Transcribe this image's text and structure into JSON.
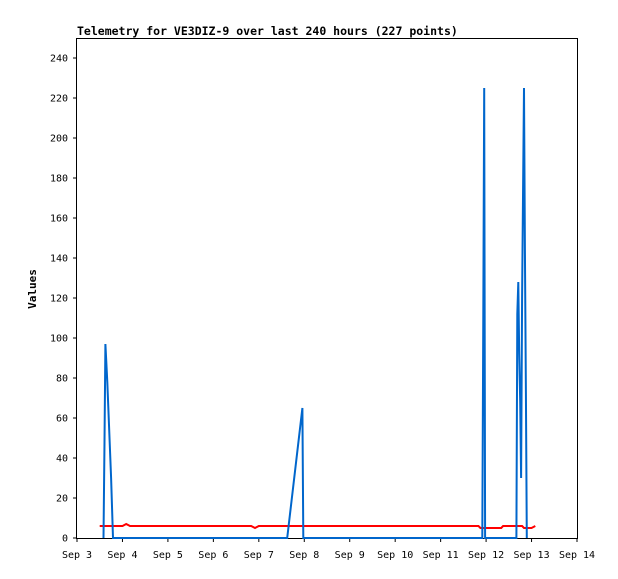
{
  "chart_data": {
    "type": "line",
    "title": "Telemetry for VE3DIZ-9 over last 240 hours (227 points)",
    "xlabel": "",
    "ylabel": "Values",
    "xlim": [
      "2023-09-03",
      "2023-09-14"
    ],
    "ylim": [
      0,
      250
    ],
    "x_ticks": [
      "Sep 3",
      "Sep 4",
      "Sep 5",
      "Sep 6",
      "Sep 7",
      "Sep 8",
      "Sep 9",
      "Sep 10",
      "Sep 11",
      "Sep 12",
      "Sep 13",
      "Sep 14"
    ],
    "y_ticks": [
      0,
      20,
      40,
      60,
      80,
      100,
      120,
      140,
      160,
      180,
      200,
      220,
      240
    ],
    "grid": false,
    "legend": "none",
    "series": [
      {
        "color": "#ff0000",
        "points": [
          [
            "2023-09-03T12:00",
            6
          ],
          [
            "2023-09-04T00:00",
            6
          ],
          [
            "2023-09-04T02:00",
            7
          ],
          [
            "2023-09-04T04:00",
            6
          ],
          [
            "2023-09-06T20:00",
            6
          ],
          [
            "2023-09-06T22:00",
            5
          ],
          [
            "2023-09-07T00:00",
            6
          ],
          [
            "2023-09-11T20:00",
            6
          ],
          [
            "2023-09-11T21:00",
            5
          ],
          [
            "2023-09-12T08:00",
            5
          ],
          [
            "2023-09-12T09:00",
            6
          ],
          [
            "2023-09-12T19:00",
            6
          ],
          [
            "2023-09-12T20:00",
            5
          ],
          [
            "2023-09-13T00:00",
            5
          ],
          [
            "2023-09-13T02:00",
            6
          ]
        ]
      },
      {
        "color": "#0066cc",
        "points": [
          [
            "2023-09-03T14:00",
            0
          ],
          [
            "2023-09-03T14:30",
            48
          ],
          [
            "2023-09-03T15:00",
            97
          ],
          [
            "2023-09-03T16:00",
            78
          ],
          [
            "2023-09-03T18:00",
            30
          ],
          [
            "2023-09-03T19:00",
            0
          ],
          [
            "2023-09-04T00:00",
            0
          ],
          [
            "2023-09-07T15:00",
            0
          ],
          [
            "2023-09-07T23:00",
            65
          ],
          [
            "2023-09-07T23:30",
            0
          ],
          [
            "2023-09-11T22:00",
            0
          ],
          [
            "2023-09-11T22:30",
            112
          ],
          [
            "2023-09-11T23:00",
            225
          ],
          [
            "2023-09-11T23:30",
            0
          ],
          [
            "2023-09-12T16:00",
            0
          ],
          [
            "2023-09-12T16:30",
            112
          ],
          [
            "2023-09-12T17:00",
            128
          ],
          [
            "2023-09-12T17:30",
            92
          ],
          [
            "2023-09-12T18:00",
            68
          ],
          [
            "2023-09-12T18:30",
            30
          ],
          [
            "2023-09-12T19:00",
            121
          ],
          [
            "2023-09-12T20:00",
            225
          ],
          [
            "2023-09-12T20:30",
            145
          ],
          [
            "2023-09-12T21:00",
            73
          ],
          [
            "2023-09-12T21:30",
            0
          ]
        ]
      }
    ]
  }
}
